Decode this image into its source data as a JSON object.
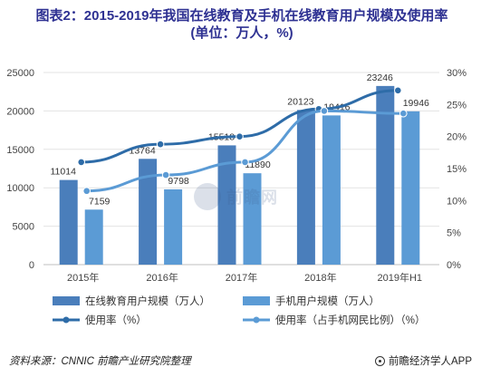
{
  "title": {
    "line1": "图表2：2015-2019年我国在线教育及手机在线教育用户规模及使用率",
    "line2": "(单位：万人，%)"
  },
  "chart_data": {
    "type": "bar",
    "categories": [
      "2015年",
      "2016年",
      "2017年",
      "2018年",
      "2019年H1"
    ],
    "y_left": {
      "ylim": [
        0,
        25000
      ],
      "ticks": [
        "0",
        "5000",
        "10000",
        "15000",
        "20000",
        "25000"
      ]
    },
    "y_right": {
      "ylim": [
        0,
        30
      ],
      "ticks": [
        "0%",
        "5%",
        "10%",
        "15%",
        "20%",
        "25%",
        "30%"
      ]
    },
    "bar_series": [
      {
        "name": "在线教育用户规模（万人）",
        "values": [
          11014,
          13764,
          15518,
          20123,
          23246
        ],
        "labels": [
          "11014",
          "13764",
          "15518",
          "20123",
          "23246"
        ],
        "color": "#4a7ebb"
      },
      {
        "name": "手机用户规模（万人）",
        "values": [
          7159,
          9798,
          11890,
          19416,
          19946
        ],
        "labels": [
          "7159",
          "9798",
          "11890",
          "19416",
          "19946"
        ],
        "color": "#5b9bd5"
      }
    ],
    "line_series": [
      {
        "name": "使用率（%）",
        "values": [
          16.0,
          18.8,
          20.0,
          24.3,
          27.2
        ],
        "color": "#2e6ca8"
      },
      {
        "name": "使用率（占手机网民比例）（%）",
        "values": [
          11.5,
          14.0,
          16.0,
          24.0,
          23.6
        ],
        "color": "#5b9bd5"
      }
    ],
    "legend_position": "bottom",
    "grid": true
  },
  "footer": {
    "source": "资料来源：CNNIC 前瞻产业研究院整理",
    "brand": "前瞻经济学人APP"
  },
  "watermark": {
    "text": "前瞻网"
  }
}
